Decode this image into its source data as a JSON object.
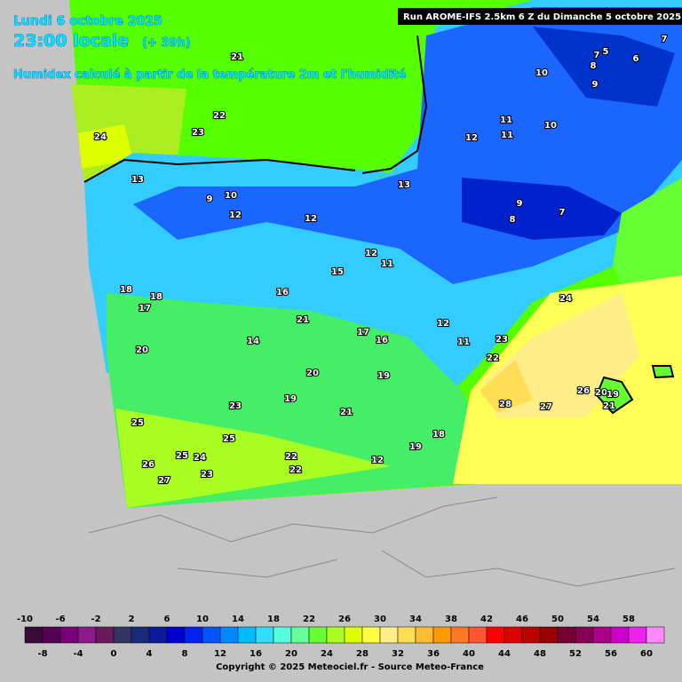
{
  "header": {
    "date": "Lundi 6 octobre 2025",
    "time": "23:00 locale",
    "lead": "(+ 39h)",
    "description": "Humidex calculé à partir de la température 2m et l'humidité",
    "run": "Run AROME-IFS 2.5km 6 Z du Dimanche 5 octobre 2025"
  },
  "map": {
    "contour_labels": [
      21,
      22,
      23,
      24,
      13,
      9,
      10,
      12,
      12,
      13,
      12,
      11,
      11,
      10,
      10,
      9,
      8,
      7,
      5,
      6,
      7,
      9,
      8,
      7,
      12,
      11,
      15,
      16,
      18,
      18,
      17,
      21,
      14,
      17,
      16,
      12,
      11,
      24,
      23,
      22,
      20,
      20,
      19,
      19,
      23,
      21,
      25,
      28,
      27,
      26,
      20,
      19,
      21,
      25,
      18,
      19,
      22,
      24,
      25,
      26,
      27,
      23,
      22,
      12
    ]
  },
  "legend": {
    "ticks": [
      -10,
      -8,
      -6,
      -4,
      -2,
      0,
      2,
      4,
      6,
      8,
      10,
      12,
      14,
      16,
      18,
      20,
      22,
      24,
      26,
      28,
      30,
      32,
      34,
      36,
      38,
      40,
      42,
      44,
      46,
      48,
      50,
      52,
      54,
      56,
      58,
      60
    ],
    "colors": [
      "#3a0a3a",
      "#550055",
      "#7a007a",
      "#8b1a8b",
      "#6a1a5a",
      "#333366",
      "#1a2a7a",
      "#0a1a9a",
      "#0000cc",
      "#0022ee",
      "#0055ff",
      "#0088ff",
      "#00bbff",
      "#33ddff",
      "#55ffdd",
      "#66ff99",
      "#66ff33",
      "#aaff22",
      "#ddff00",
      "#ffff44",
      "#ffee88",
      "#ffdd55",
      "#ffbb33",
      "#ff9900",
      "#ff7722",
      "#ff5533",
      "#ff0000",
      "#dd0000",
      "#bb0000",
      "#990000",
      "#770033",
      "#880055",
      "#aa0088",
      "#cc00cc",
      "#ee22ee",
      "#ff88ff"
    ]
  },
  "footer": {
    "copyright": "Copyright © 2025 Meteociel.fr - Source Meteo-France"
  }
}
